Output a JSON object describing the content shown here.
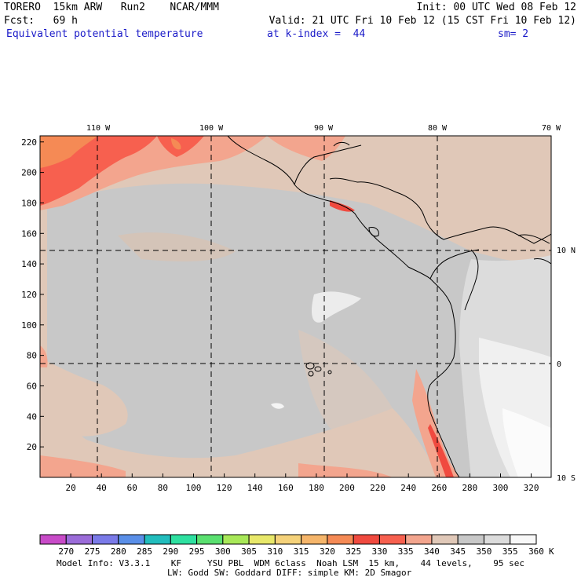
{
  "header": {
    "line1_left": "TORERO  15km ARW   Run2    NCAR/MMM",
    "line1_right": "Init: 00 UTC Wed 08 Feb 12",
    "line2_left": "Fcst:   69 h",
    "line2_right": "Valid: 21 UTC Fri 10 Feb 12 (15 CST Fri 10 Feb 12)",
    "field": "Equivalent potential temperature",
    "level": "at k-index =  44",
    "smoothing": "sm= 2"
  },
  "map": {
    "lon_labels": [
      "110 W",
      "100 W",
      "90 W",
      "80 W",
      "70 W"
    ],
    "lat_labels": [
      "10 N",
      "0",
      "10 S"
    ],
    "y_ticks": [
      20,
      40,
      60,
      80,
      100,
      120,
      140,
      160,
      180,
      200,
      220
    ],
    "x_ticks": [
      20,
      40,
      60,
      80,
      100,
      120,
      140,
      160,
      180,
      200,
      220,
      240,
      260,
      280,
      300,
      320
    ],
    "grid_max_x": 333,
    "grid_max_y": 224
  },
  "colorbar": {
    "unit": "K",
    "levels": [
      "270",
      "275",
      "280",
      "285",
      "290",
      "295",
      "300",
      "305",
      "310",
      "315",
      "320",
      "325",
      "330",
      "335",
      "340",
      "345",
      "350",
      "355",
      "360"
    ],
    "colors": [
      "#c84bc8",
      "#9b6cd9",
      "#7a7ae8",
      "#5a8fe8",
      "#22bdbd",
      "#2ee0a0",
      "#5ae070",
      "#a8e858",
      "#e8e86a",
      "#f5d27a",
      "#f5b56a",
      "#f58a55",
      "#f04a3f",
      "#f7604f",
      "#f3a58e",
      "#e0c8b8",
      "#c8c8c8",
      "#dcdcdc",
      "#f8f8f8"
    ]
  },
  "footer": {
    "line1": "Model Info: V3.3.1    KF     YSU PBL  WDM 6class  Noah LSM  15 km,    44 levels,    95 sec",
    "line2": "LW: Godd SW: Goddard DIFF: simple KM: 2D Smagor"
  }
}
